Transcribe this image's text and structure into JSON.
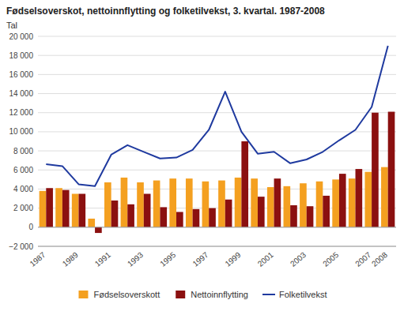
{
  "chart_data": {
    "type": "bar",
    "title": "Fødselsoverskot, nettoinnflytting og folketilvekst, 3. kvartal. 1987-2008",
    "y_label": "Tal",
    "categories": [
      "1987",
      null,
      "1989",
      null,
      "1991",
      null,
      "1993",
      null,
      "1995",
      null,
      "1997",
      null,
      "1999",
      null,
      "2001",
      null,
      "2003",
      null,
      "2005",
      null,
      "2007",
      "2008"
    ],
    "series": [
      {
        "name": "Fødselsoverskott",
        "type": "bar",
        "color": "#F4A020",
        "values": [
          3800,
          4100,
          3500,
          900,
          4700,
          5200,
          4700,
          4900,
          5100,
          5100,
          4800,
          4900,
          5200,
          5100,
          4200,
          4300,
          4600,
          4800,
          5000,
          5100,
          5800,
          6300
        ]
      },
      {
        "name": "Nettoinnflytting",
        "type": "bar",
        "color": "#8B1010",
        "values": [
          4100,
          3900,
          3500,
          -600,
          2800,
          2400,
          3500,
          2100,
          1600,
          1900,
          2000,
          2900,
          9000,
          3200,
          5100,
          2300,
          2200,
          3300,
          5600,
          6100,
          12000,
          12100
        ]
      },
      {
        "name": "Folketilvekst",
        "type": "line",
        "color": "#1F3A9F",
        "values": [
          6600,
          6400,
          4500,
          4300,
          7600,
          8600,
          7900,
          7200,
          7300,
          8100,
          10200,
          14200,
          10000,
          7700,
          7900,
          6700,
          7100,
          7900,
          9100,
          10200,
          12600,
          19000
        ]
      }
    ],
    "ylim": [
      -2000,
      20000
    ],
    "yticks": [
      {
        "value": -2000,
        "label": "−2 000"
      },
      0,
      {
        "value": 2000,
        "label": "2 000"
      },
      {
        "value": 4000,
        "label": "4 000"
      },
      {
        "value": 6000,
        "label": "6 000"
      },
      {
        "value": 8000,
        "label": "8 000"
      },
      {
        "value": 10000,
        "label": "10 000"
      },
      {
        "value": 12000,
        "label": "12 000"
      },
      {
        "value": 14000,
        "label": "14 000"
      },
      {
        "value": 16000,
        "label": "16 000"
      },
      {
        "value": 18000,
        "label": "18 000"
      },
      {
        "value": 20000,
        "label": "20 000"
      }
    ],
    "grid": true,
    "legend": "bottom"
  }
}
